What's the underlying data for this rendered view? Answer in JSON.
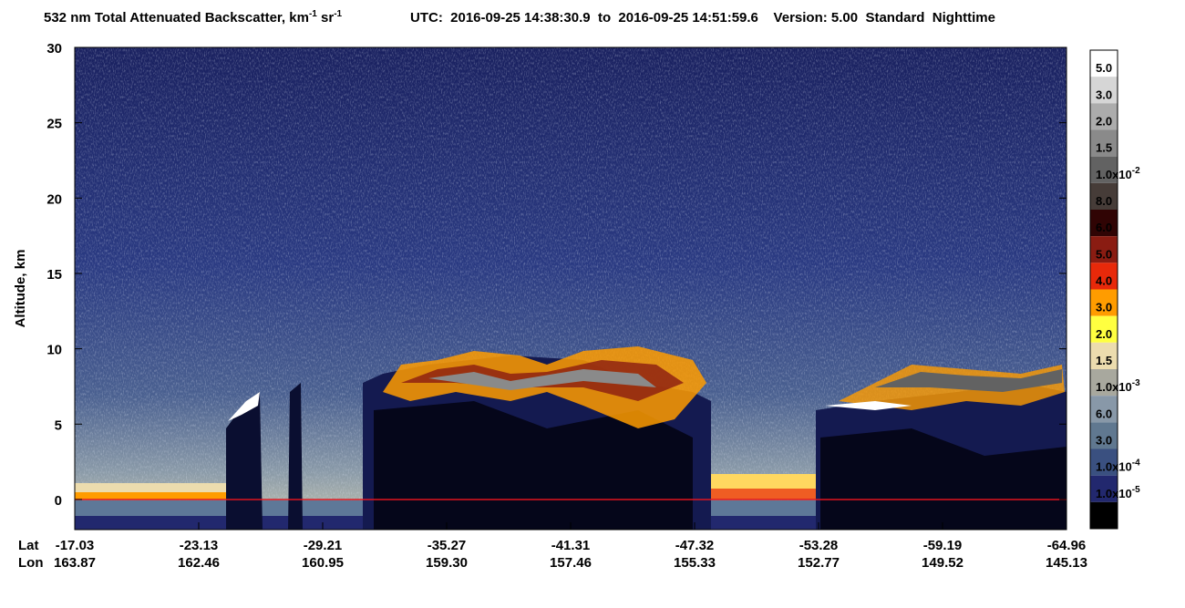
{
  "chart_data": {
    "type": "curtain",
    "title_parts": [
      {
        "text": "532 nm Total Attenuated Backscatter, km"
      },
      {
        "sup": "-1"
      },
      {
        "text": " sr"
      },
      {
        "sup": "-1"
      }
    ],
    "subtitle": "UTC:  2016-09-25 14:38:30.9  to  2016-09-25 14:51:59.6    Version: 5.00  Standard  Nighttime",
    "y_label": "Altitude, km",
    "ylim": [
      -2,
      30
    ],
    "yticks": [
      0,
      5,
      10,
      15,
      20,
      25,
      30
    ],
    "x_row_labels": [
      "Lat",
      "Lon"
    ],
    "lat": [
      "-17.03",
      "-23.13",
      "-29.21",
      "-35.27",
      "-41.31",
      "-47.32",
      "-53.28",
      "-59.19",
      "-64.96"
    ],
    "lon": [
      "163.87",
      "162.46",
      "160.95",
      "159.30",
      "157.46",
      "155.33",
      "152.77",
      "149.52",
      "145.13"
    ],
    "surface_color": "#e0141e",
    "colorbar": {
      "colors": [
        "#ffffff",
        "#d6d6d6",
        "#acacac",
        "#8a8a8a",
        "#626262",
        "#463c38",
        "#300404",
        "#8a1c12",
        "#e8290a",
        "#ff9c00",
        "#ffff40",
        "#ecdcae",
        "#a8a89e",
        "#8898a8",
        "#607890",
        "#3a5080",
        "#22286e",
        "#000000"
      ],
      "labels": [
        {
          "text": "5.0"
        },
        {
          "text": "3.0"
        },
        {
          "text": "2.0"
        },
        {
          "text": "1.5"
        },
        {
          "text": "1.0x10",
          "sup": "-2"
        },
        {
          "text": "8.0"
        },
        {
          "text": "6.0"
        },
        {
          "text": "5.0"
        },
        {
          "text": "4.0"
        },
        {
          "text": "3.0"
        },
        {
          "text": "2.0"
        },
        {
          "text": "1.5"
        },
        {
          "text": "1.0x10",
          "sup": "-3"
        },
        {
          "text": "6.0"
        },
        {
          "text": "3.0"
        },
        {
          "text": "1.0x10",
          "sup": "-4"
        },
        {
          "text": "1.0x10",
          "sup": "-5"
        }
      ]
    }
  }
}
